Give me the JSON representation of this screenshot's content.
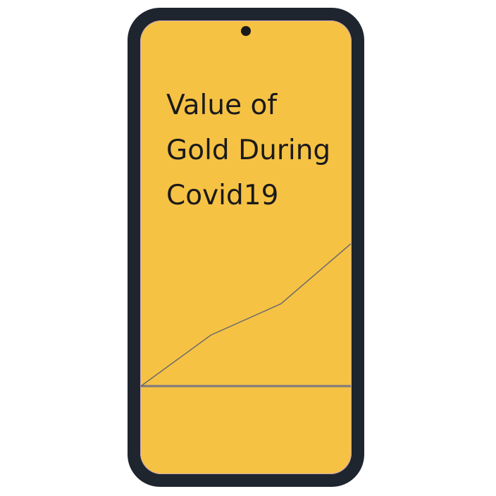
{
  "screen": {
    "title": "Value of Gold During Covid19"
  },
  "chart_data": {
    "type": "line",
    "x": [
      0,
      1,
      2,
      3
    ],
    "series": [
      {
        "values": [
          0,
          0.62,
          1.0,
          1.73
        ]
      }
    ],
    "grid": false,
    "axes": {
      "x_baseline_visible": true,
      "y_axis_visible": false
    },
    "colors": {
      "line": "#6b6b6b",
      "baseline": "#7a7882"
    }
  },
  "colors": {
    "frame": "#1e252e",
    "screen": "#f6c244",
    "text": "#1a1a1a"
  }
}
